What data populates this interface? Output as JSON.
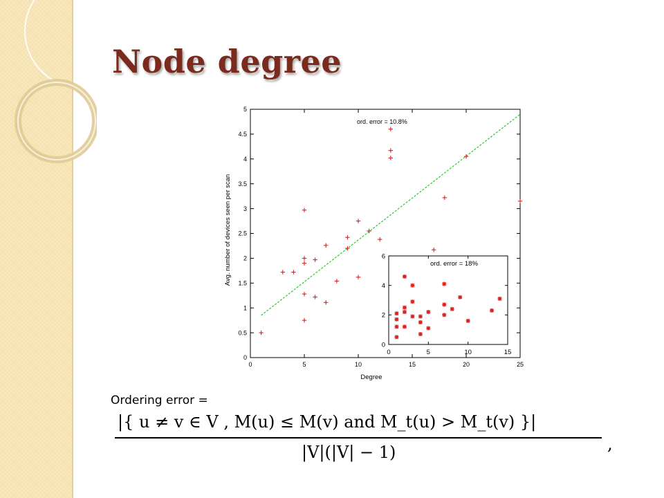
{
  "slide": {
    "title": "Node degree",
    "caption": "Ordering error =",
    "formula": {
      "numerator": "|{ u ≠ v ∈ V , M(u) ≤ M(v) and M_t(u) > M_t(v) }|",
      "denominator": "|V|(|V| − 1)",
      "trailing": ","
    }
  },
  "theme": {
    "title_color": "#7a2b1d",
    "sidebar_color": "#f5e2b0",
    "marker_color": "#d82020",
    "fit_color": "#22cc22"
  },
  "chart_data": [
    {
      "type": "scatter",
      "xlabel": "Degree",
      "ylabel": "Avg. number of devices seen per scan",
      "xlim": [
        0,
        25
      ],
      "ylim": [
        0,
        5
      ],
      "xticks": [
        0,
        5,
        10,
        15,
        20,
        25
      ],
      "yticks": [
        0,
        0.5,
        1,
        1.5,
        2,
        2.5,
        3,
        3.5,
        4,
        4.5,
        5
      ],
      "annotation": "ord. error = 10.8%",
      "marker": "+",
      "points": [
        [
          1,
          0.5
        ],
        [
          3,
          1.72
        ],
        [
          4,
          1.72
        ],
        [
          5,
          0.75
        ],
        [
          5,
          1.28
        ],
        [
          5,
          1.9
        ],
        [
          5,
          2.0
        ],
        [
          5,
          2.97
        ],
        [
          6,
          1.22
        ],
        [
          6,
          1.97
        ],
        [
          7,
          1.11
        ],
        [
          7,
          2.26
        ],
        [
          8,
          1.54
        ],
        [
          9,
          2.2
        ],
        [
          9,
          2.42
        ],
        [
          10,
          1.62
        ],
        [
          10,
          2.75
        ],
        [
          11,
          2.55
        ],
        [
          12,
          2.38
        ],
        [
          13,
          4.02
        ],
        [
          13,
          4.17
        ],
        [
          13,
          4.6
        ],
        [
          17,
          2.17
        ],
        [
          18,
          3.22
        ],
        [
          20,
          4.05
        ],
        [
          25,
          3.15
        ]
      ],
      "fit_line": {
        "x": [
          1,
          25
        ],
        "y": [
          0.85,
          4.9
        ]
      }
    },
    {
      "type": "scatter",
      "xlim": [
        0,
        15
      ],
      "ylim": [
        0,
        6
      ],
      "xticks": [
        0,
        5,
        10,
        15
      ],
      "yticks": [
        0,
        2,
        4,
        6
      ],
      "annotation": "ord. error = 18%",
      "marker": "*",
      "points": [
        [
          1,
          0.5
        ],
        [
          1,
          1.2
        ],
        [
          1,
          1.7
        ],
        [
          1,
          2.1
        ],
        [
          2,
          1.2
        ],
        [
          2,
          2.2
        ],
        [
          2,
          2.5
        ],
        [
          2,
          4.6
        ],
        [
          3,
          1.9
        ],
        [
          3,
          2.9
        ],
        [
          3,
          4.0
        ],
        [
          4,
          0.7
        ],
        [
          4,
          1.5
        ],
        [
          4,
          1.9
        ],
        [
          5,
          1.1
        ],
        [
          5,
          2.2
        ],
        [
          7,
          2.0
        ],
        [
          7,
          2.7
        ],
        [
          7,
          4.1
        ],
        [
          8,
          2.4
        ],
        [
          9,
          3.2
        ],
        [
          10,
          1.6
        ],
        [
          13,
          2.3
        ],
        [
          14,
          3.1
        ]
      ]
    }
  ]
}
